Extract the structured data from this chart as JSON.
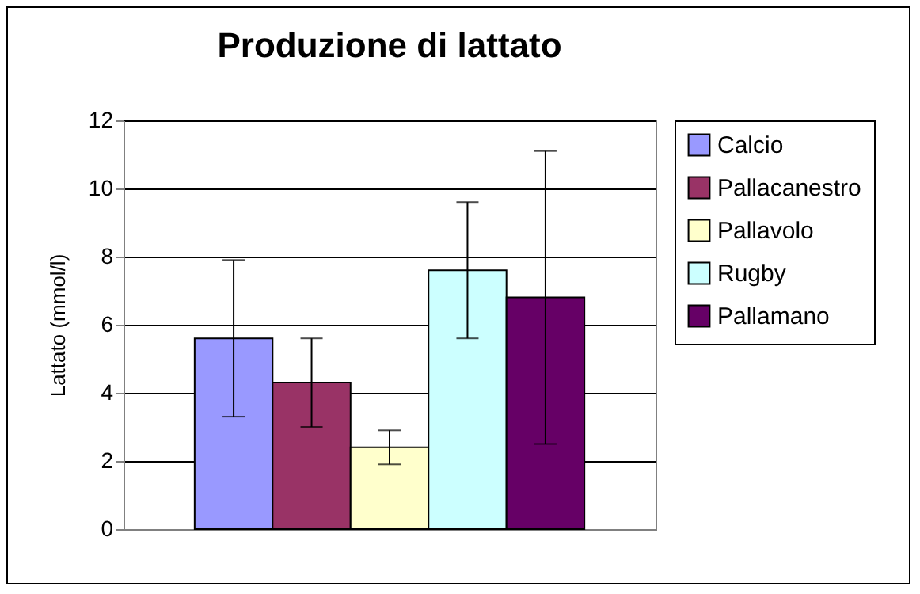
{
  "chart_data": {
    "type": "bar",
    "title": "Produzione di lattato",
    "ylabel": "Lattato (mmol/l)",
    "categories": [
      null
    ],
    "series": [
      {
        "name": "Calcio",
        "color": "#9999ff",
        "values": [
          5.6
        ],
        "errors": [
          2.3
        ]
      },
      {
        "name": "Pallacanestro",
        "color": "#993366",
        "values": [
          4.3
        ],
        "errors": [
          [
            3.0,
            5.6
          ]
        ]
      },
      {
        "name": "Pallavolo",
        "color": "#ffffcc",
        "values": [
          2.4
        ],
        "errors": [
          0.5
        ]
      },
      {
        "name": "Rugby",
        "color": "#ccffff",
        "values": [
          7.6
        ],
        "errors": [
          2.0
        ]
      },
      {
        "name": "Pallamano",
        "color": "#660066",
        "values": [
          6.8
        ],
        "errors": [
          4.3
        ]
      }
    ],
    "ylim": [
      0,
      12
    ],
    "yticks": [
      0,
      2,
      4,
      6,
      8,
      10,
      12
    ],
    "grid": "y",
    "legend": "right",
    "tick_labels": "y"
  }
}
